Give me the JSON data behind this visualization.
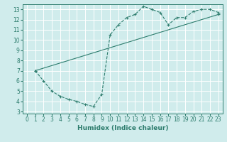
{
  "line1_x": [
    1,
    2,
    3,
    4,
    5,
    6,
    7,
    8,
    9,
    10,
    11,
    12,
    13,
    14,
    15,
    16,
    17,
    18,
    19,
    20,
    21,
    22,
    23
  ],
  "line1_y": [
    7.0,
    6.0,
    5.0,
    4.5,
    4.2,
    4.0,
    3.7,
    3.5,
    4.7,
    10.5,
    11.5,
    12.2,
    12.5,
    13.3,
    13.0,
    12.7,
    11.5,
    12.2,
    12.2,
    12.8,
    13.0,
    13.0,
    12.7
  ],
  "line2_x": [
    1,
    23
  ],
  "line2_y": [
    7.0,
    12.5
  ],
  "line_color": "#2e7d6e",
  "bg_color": "#d0ecec",
  "grid_color": "#ffffff",
  "xlabel": "Humidex (Indice chaleur)",
  "xlim": [
    -0.5,
    23.5
  ],
  "ylim": [
    2.8,
    13.5
  ],
  "xticks": [
    0,
    1,
    2,
    3,
    4,
    5,
    6,
    7,
    8,
    9,
    10,
    11,
    12,
    13,
    14,
    15,
    16,
    17,
    18,
    19,
    20,
    21,
    22,
    23
  ],
  "yticks": [
    3,
    4,
    5,
    6,
    7,
    8,
    9,
    10,
    11,
    12,
    13
  ],
  "label_fontsize": 6.5,
  "tick_fontsize": 5.5
}
